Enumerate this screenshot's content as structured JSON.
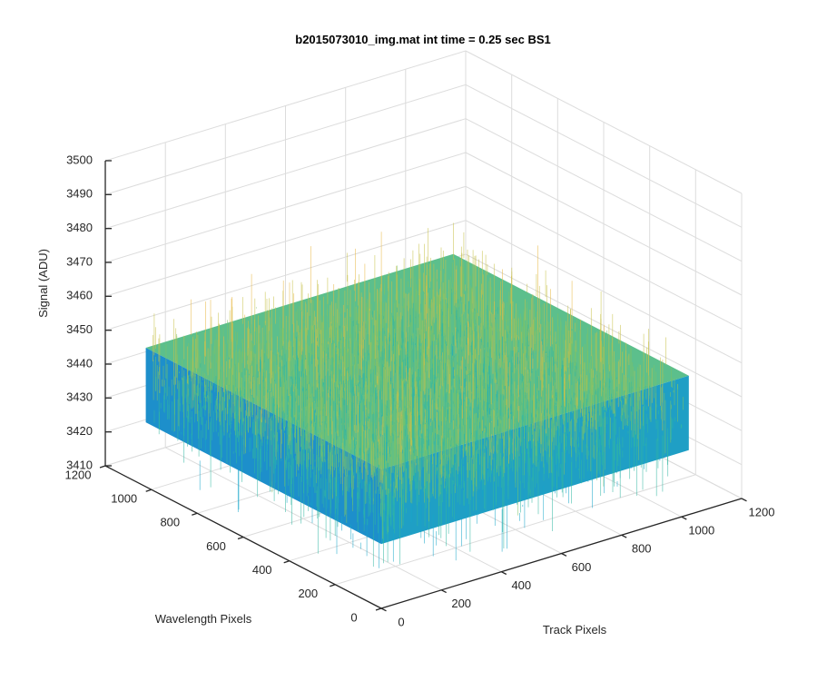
{
  "chart_data": {
    "type": "surface",
    "title": "b2015073010_img.mat int time = 0.25 sec   BS1",
    "xlabel": "Track Pixels",
    "ylabel": "Wavelength Pixels",
    "zlabel": "Signal (ADU)",
    "xlim": [
      0,
      1200
    ],
    "ylim": [
      0,
      1200
    ],
    "zlim": [
      3410,
      3500
    ],
    "x_ticks": [
      0,
      200,
      400,
      600,
      800,
      1000,
      1200
    ],
    "y_ticks": [
      0,
      200,
      400,
      600,
      800,
      1000,
      1200
    ],
    "z_ticks": [
      3410,
      3420,
      3430,
      3440,
      3450,
      3460,
      3470,
      3480,
      3490,
      3500
    ],
    "data_extent": {
      "x": [
        0,
        1024
      ],
      "y": [
        0,
        1024
      ]
    },
    "signal_mean": 3441,
    "signal_spread": [
      3415,
      3470
    ],
    "grid": true,
    "colormap": [
      "#1e6fd0",
      "#17a6c9",
      "#32b7a2",
      "#7cc36a",
      "#c8c24a",
      "#e8b845"
    ]
  }
}
